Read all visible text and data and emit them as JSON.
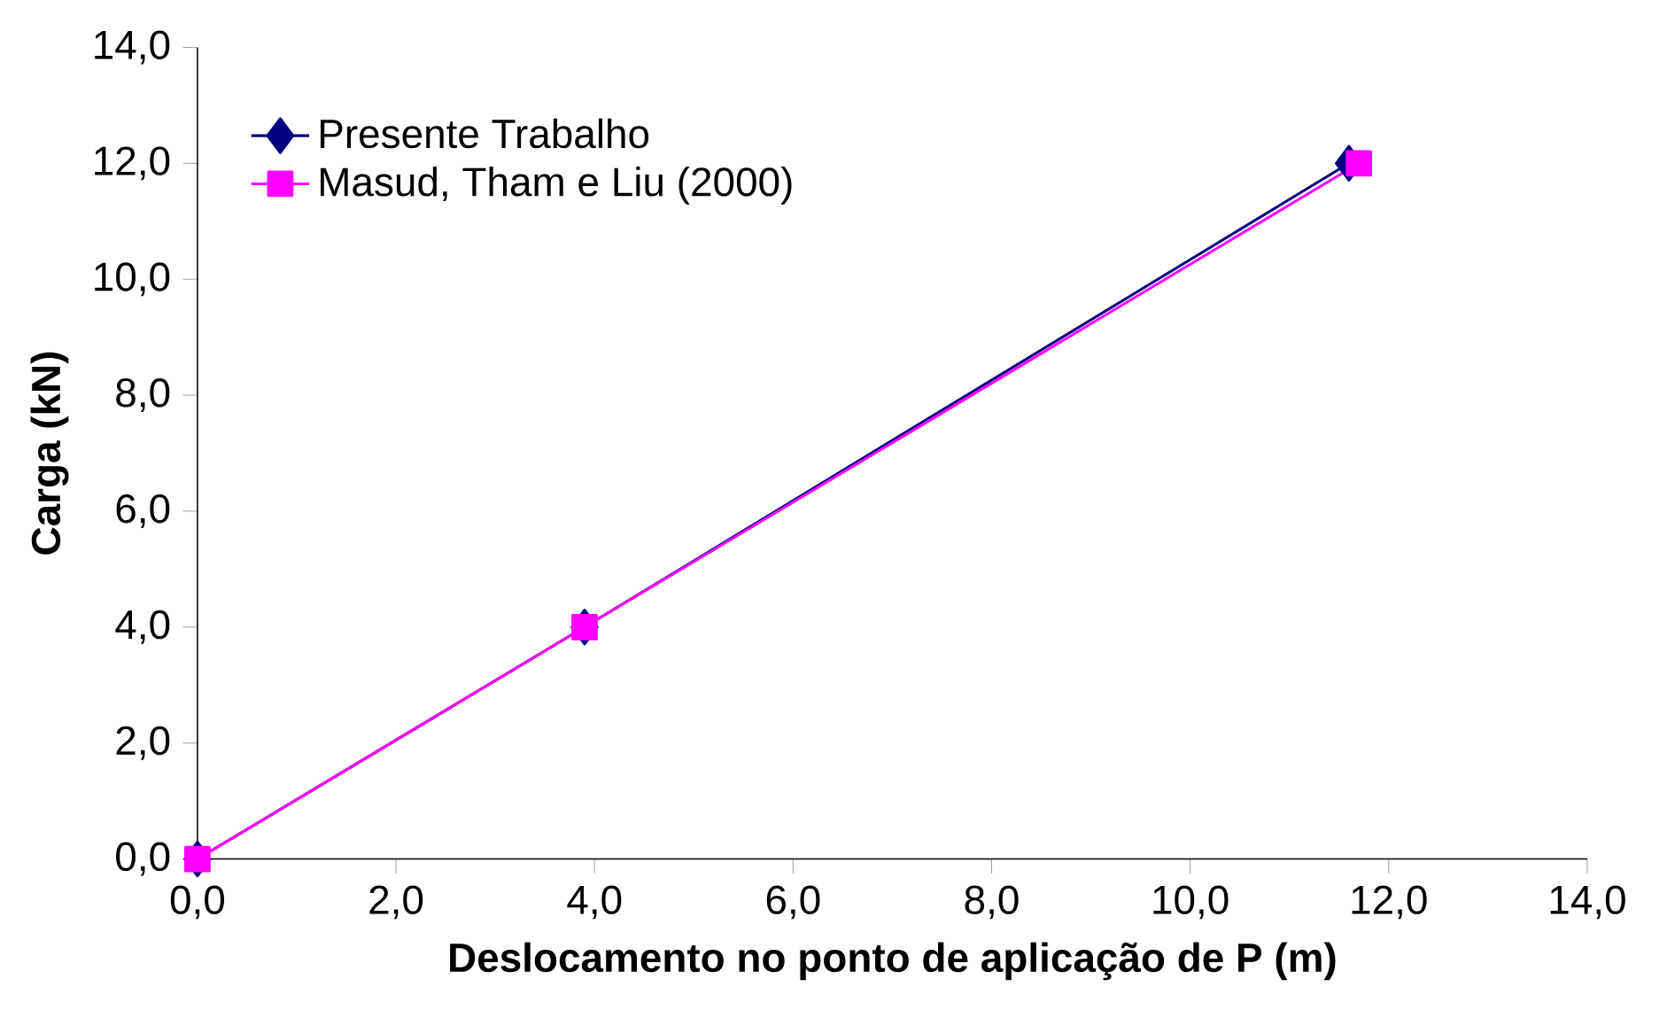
{
  "chart_data": {
    "type": "line",
    "xlabel": "Deslocamento no ponto de aplicação de P (m)",
    "ylabel": "Carga (kN)",
    "xlim": [
      0,
      14
    ],
    "ylim": [
      0,
      14
    ],
    "xticks": [
      {
        "value": 0,
        "label": "0,0"
      },
      {
        "value": 2,
        "label": "2,0"
      },
      {
        "value": 4,
        "label": "4,0"
      },
      {
        "value": 6,
        "label": "6,0"
      },
      {
        "value": 8,
        "label": "8,0"
      },
      {
        "value": 10,
        "label": "10,0"
      },
      {
        "value": 12,
        "label": "12,0"
      },
      {
        "value": 14,
        "label": "14,0"
      }
    ],
    "yticks": [
      {
        "value": 0,
        "label": "0,0"
      },
      {
        "value": 2,
        "label": "2,0"
      },
      {
        "value": 4,
        "label": "4,0"
      },
      {
        "value": 6,
        "label": "6,0"
      },
      {
        "value": 8,
        "label": "8,0"
      },
      {
        "value": 10,
        "label": "10,0"
      },
      {
        "value": 12,
        "label": "12,0"
      },
      {
        "value": 14,
        "label": "14,0"
      }
    ],
    "grid": false,
    "legend": "top left",
    "series": [
      {
        "name": "Presente Trabalho",
        "color": "#000080",
        "marker": "diamond",
        "x": [
          0,
          3.9,
          11.6
        ],
        "values": [
          0,
          4.0,
          12.0
        ]
      },
      {
        "name": "Masud, Tham e Liu (2000)",
        "color": "#ff00ff",
        "marker": "square",
        "x": [
          0,
          3.9,
          11.7
        ],
        "values": [
          0,
          4.0,
          12.0
        ]
      }
    ]
  }
}
